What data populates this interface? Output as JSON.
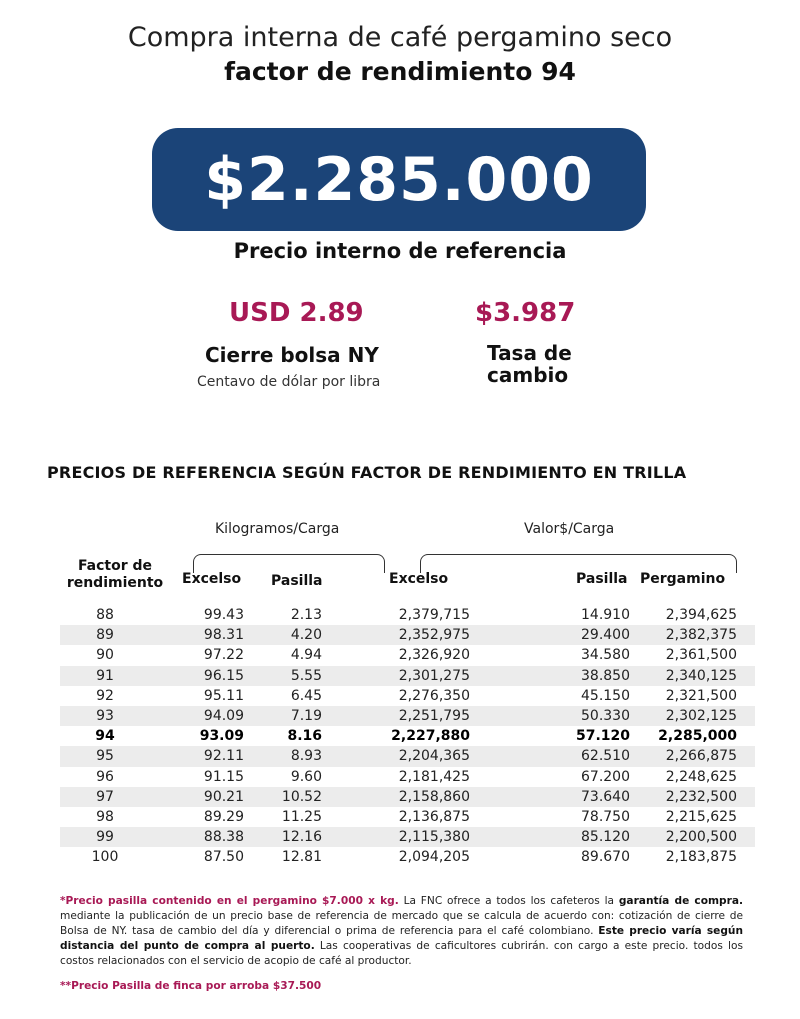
{
  "header": {
    "line1": "Compra interna de café pergamino seco",
    "line2": "factor de rendimiento 94"
  },
  "price": {
    "value": "$2.285.000",
    "label": "Precio interno de referencia"
  },
  "ny": {
    "value": "USD 2.89",
    "label": "Cierre bolsa NY",
    "sub": "Centavo de dólar por libra"
  },
  "fx": {
    "value": "$3.987",
    "label": "Tasa de cambio"
  },
  "table": {
    "section_title": "PRECIOS DE REFERENCIA SEGÚN FACTOR DE RENDIMIENTO EN TRILLA",
    "group_kg": "Kilogramos/Carga",
    "group_value": "Valor$/Carga",
    "headers": {
      "factor": "Factor de rendimiento",
      "excelso_kg": "Excelso",
      "pasilla_kg": "Pasilla",
      "excelso_val": "Excelso",
      "pasilla_val": "Pasilla",
      "pergamino": "Pergamino"
    },
    "rows": [
      [
        "88",
        "99.43",
        "2.13",
        "2,379,715",
        "14.910",
        "2,394,625"
      ],
      [
        "89",
        "98.31",
        "4.20",
        "2,352,975",
        "29.400",
        "2,382,375"
      ],
      [
        "90",
        "97.22",
        "4.94",
        "2,326,920",
        "34.580",
        "2,361,500"
      ],
      [
        "91",
        "96.15",
        "5.55",
        "2,301,275",
        "38.850",
        "2,340,125"
      ],
      [
        "92",
        "95.11",
        "6.45",
        "2,276,350",
        "45.150",
        "2,321,500"
      ],
      [
        "93",
        "94.09",
        "7.19",
        "2,251,795",
        "50.330",
        "2,302,125"
      ],
      [
        "94",
        "93.09",
        "8.16",
        "2,227,880",
        "57.120",
        "2,285,000"
      ],
      [
        "95",
        "92.11",
        "8.93",
        "2,204,365",
        "62.510",
        "2,266,875"
      ],
      [
        "96",
        "91.15",
        "9.60",
        "2,181,425",
        "67.200",
        "2,248,625"
      ],
      [
        "97",
        "90.21",
        "10.52",
        "2,158,860",
        "73.640",
        "2,232,500"
      ],
      [
        "98",
        "89.29",
        "11.25",
        "2,136,875",
        "78.750",
        "2,215,625"
      ],
      [
        "99",
        "88.38",
        "12.16",
        "2,115,380",
        "85.120",
        "2,200,500"
      ],
      [
        "100",
        "87.50",
        "12.81",
        "2,094,205",
        "89.670",
        "2,183,875"
      ]
    ],
    "highlight_row": 6
  },
  "notes": {
    "n1_highlight": "*Precio pasilla contenido en el pergamino $7.000 x kg.",
    "n1_text_a": " La FNC ofrece a todos los cafeteros la ",
    "n1_bold_a": "garantía de compra.",
    "n1_text_b": " mediante la publicación de un precio base de referencia de mercado que se calcula de acuerdo con: cotización de cierre de Bolsa de NY. tasa de cambio del día y diferencial o prima de referencia para el café colombiano. ",
    "n1_bold_b": "Este precio varía según distancia del punto de compra al puerto.",
    "n1_text_c": " Las cooperativas de caficultores cubrirán. con cargo a este precio. todos los costos relacionados con el servicio de acopio de café al productor.",
    "n2": "**Precio Pasilla de finca por arroba $37.500"
  },
  "colors": {
    "navy": "#1b4478",
    "accent": "#a81955",
    "row_shade": "#ececec"
  }
}
